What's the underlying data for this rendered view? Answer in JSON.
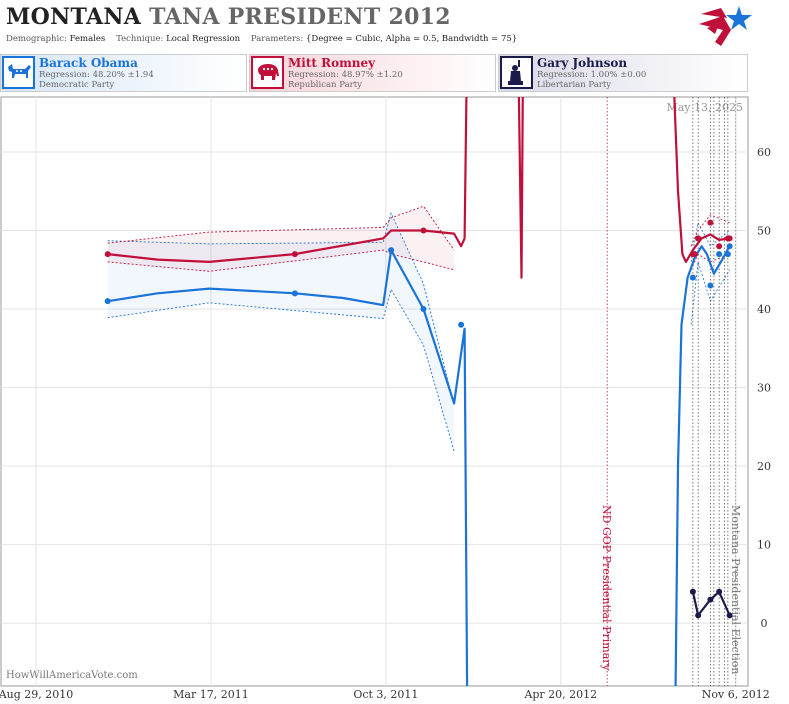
{
  "header": {
    "title_state": "MONTANA",
    "title_race": "TANA PRESIDENT 2012",
    "demographic_label": "Demographic:",
    "demographic_value": "Females",
    "technique_label": "Technique:",
    "technique_value": "Local Regression",
    "parameters_label": "Parameters:",
    "parameters_value": "{Degree = Cubic, Alpha = 0.5, Bandwidth = 75}",
    "logo_icon": "star-flag-logo-icon"
  },
  "candidates": [
    {
      "name": "Barack Obama",
      "regression": "Regression: 48.20% ±1.94",
      "party": "Democratic Party",
      "color": "#1a73d9",
      "icon": "donkey-icon"
    },
    {
      "name": "Mitt Romney",
      "regression": "Regression: 48.97% ±1.20",
      "party": "Republican Party",
      "color": "#c0103a",
      "icon": "elephant-icon"
    },
    {
      "name": "Gary Johnson",
      "regression": "Regression: 1.00% ±0.00",
      "party": "Libertarian Party",
      "color": "#1b1b4b",
      "icon": "statue-of-liberty-icon"
    }
  ],
  "chart_data": {
    "type": "line",
    "date_stamp": "May 13, 2025",
    "watermark": "HowWillAmericaVote.com",
    "x_tick_labels": [
      "Aug 29, 2010",
      "Mar 17, 2011",
      "Oct 3, 2011",
      "Apr 20, 2012",
      "Nov 6, 2012"
    ],
    "y_ticks": [
      0,
      10,
      20,
      30,
      40,
      50,
      60
    ],
    "ylim": [
      -8,
      67
    ],
    "grid": true,
    "event_lines": [
      {
        "label": "ND GOP Presidential Primary",
        "date": "2012-06-12",
        "color": "#c0103a"
      },
      {
        "label": "Montana Presidential Election",
        "date": "2012-11-06",
        "color": "#777777"
      }
    ],
    "series": [
      {
        "name": "Barack Obama",
        "color": "#1a73d9",
        "points": [
          [
            "2010-11-19",
            41
          ],
          [
            "2011-06-21",
            42
          ],
          [
            "2011-10-09",
            47.5
          ],
          [
            "2011-11-15",
            40
          ],
          [
            "2011-12-28",
            38
          ],
          [
            "2012-09-18",
            44
          ],
          [
            "2012-09-20",
            47
          ],
          [
            "2012-09-24",
            49
          ],
          [
            "2012-10-08",
            43
          ],
          [
            "2012-10-18",
            47
          ],
          [
            "2012-10-28",
            47
          ],
          [
            "2012-10-30",
            48
          ]
        ],
        "trend": [
          [
            "2010-11-19",
            41
          ],
          [
            "2011-01-15",
            42
          ],
          [
            "2011-03-15",
            42.6
          ],
          [
            "2011-06-21",
            42
          ],
          [
            "2011-08-15",
            41.4
          ],
          [
            "2011-09-30",
            40.5
          ],
          [
            "2011-10-09",
            47.5
          ],
          [
            "2011-11-15",
            40
          ],
          [
            "2011-12-20",
            28
          ],
          [
            "2012-01-01",
            37.5
          ],
          [
            "2012-01-04",
            -10
          ]
        ],
        "trend2": [
          [
            "2012-08-29",
            -10
          ],
          [
            "2012-09-01",
            20
          ],
          [
            "2012-09-05",
            38
          ],
          [
            "2012-09-12",
            44
          ],
          [
            "2012-09-20",
            46.5
          ],
          [
            "2012-09-28",
            48
          ],
          [
            "2012-10-04",
            47
          ],
          [
            "2012-10-12",
            44.5
          ],
          [
            "2012-10-20",
            46
          ],
          [
            "2012-10-30",
            48
          ]
        ],
        "band_upper": [
          48.7,
          48.3,
          48.5,
          52.2,
          43.2,
          27.8
        ],
        "band_lower": [
          38.9,
          40.8,
          38.8,
          42.5,
          35.4,
          21.9
        ]
      },
      {
        "name": "Mitt Romney",
        "color": "#c0103a",
        "points": [
          [
            "2010-11-19",
            47
          ],
          [
            "2011-06-21",
            47
          ],
          [
            "2011-11-15",
            50
          ],
          [
            "2012-09-18",
            47
          ],
          [
            "2012-09-20",
            47
          ],
          [
            "2012-09-24",
            49
          ],
          [
            "2012-10-08",
            51
          ],
          [
            "2012-10-18",
            48
          ],
          [
            "2012-10-28",
            49
          ],
          [
            "2012-10-30",
            49
          ]
        ],
        "trend": [
          [
            "2010-11-19",
            47
          ],
          [
            "2011-01-15",
            46.3
          ],
          [
            "2011-03-15",
            46
          ],
          [
            "2011-06-21",
            47
          ],
          [
            "2011-09-30",
            49
          ],
          [
            "2011-10-09",
            50
          ],
          [
            "2011-11-15",
            50
          ],
          [
            "2011-12-20",
            49.6
          ],
          [
            "2011-12-28",
            48
          ],
          [
            "2012-01-01",
            49
          ],
          [
            "2012-01-04",
            75
          ]
        ],
        "spike": [
          [
            "2012-03-02",
            75
          ],
          [
            "2012-03-06",
            44
          ],
          [
            "2012-03-08",
            75
          ]
        ],
        "trend2": [
          [
            "2012-08-25",
            75
          ],
          [
            "2012-09-01",
            55
          ],
          [
            "2012-09-06",
            47
          ],
          [
            "2012-09-10",
            46
          ],
          [
            "2012-09-18",
            47.5
          ],
          [
            "2012-09-28",
            49
          ],
          [
            "2012-10-08",
            49.5
          ],
          [
            "2012-10-18",
            48.8
          ],
          [
            "2012-10-30",
            49
          ]
        ],
        "band_upper": [
          48.4,
          49.8,
          50.4,
          51.6,
          53.1,
          47.5
        ],
        "band_lower": [
          46.0,
          44.8,
          47.5,
          47.0,
          46.0,
          45.0
        ]
      },
      {
        "name": "Gary Johnson",
        "color": "#1b1b4b",
        "points": [
          [
            "2012-09-18",
            4
          ],
          [
            "2012-09-24",
            1
          ],
          [
            "2012-10-08",
            3
          ],
          [
            "2012-10-18",
            4
          ],
          [
            "2012-10-30",
            1
          ]
        ],
        "trend": [
          [
            "2012-09-18",
            4
          ],
          [
            "2012-09-24",
            1
          ],
          [
            "2012-10-08",
            3
          ],
          [
            "2012-10-18",
            4
          ],
          [
            "2012-10-30",
            1
          ]
        ]
      }
    ]
  }
}
